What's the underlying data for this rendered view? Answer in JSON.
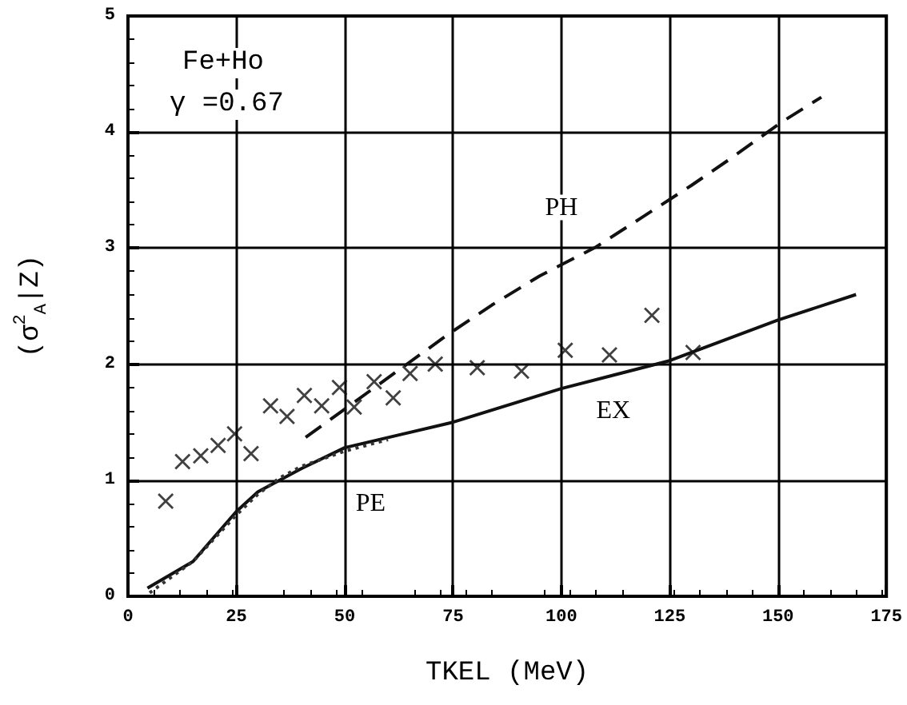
{
  "chart_data": {
    "type": "scatter",
    "xlabel": "TKEL (MeV)",
    "ylabel": "(σ$^{2}$$_{A}$|Z)",
    "xlim": [
      0,
      175
    ],
    "xticks": [
      0,
      25,
      50,
      75,
      100,
      125,
      150,
      175
    ],
    "ylim": [
      0,
      5
    ],
    "yticks": [
      0,
      1,
      2,
      3,
      4,
      5
    ],
    "grid": true,
    "series": [
      {
        "marker": "cross",
        "color": "#111111",
        "x": [
          8.7,
          12.6,
          16.8,
          20.8,
          24.6,
          28.4,
          32.9,
          36.7,
          40.7,
          44.7,
          48.8,
          52.2,
          56.8,
          61.2,
          65.1,
          70.9,
          80.6,
          90.8,
          100.9,
          111.1,
          120.9,
          130.4
        ],
        "values": [
          0.82,
          1.16,
          1.21,
          1.3,
          1.4,
          1.23,
          1.64,
          1.55,
          1.73,
          1.64,
          1.8,
          1.63,
          1.85,
          1.71,
          1.92,
          2.0,
          1.97,
          1.94,
          2.12,
          2.08,
          2.42,
          2.1
        ]
      },
      {
        "type": "line",
        "marker": "none",
        "color": "#111111",
        "line_style": "solid",
        "x": [
          4.5,
          15,
          25,
          30,
          35,
          40,
          50,
          75,
          100,
          125,
          150,
          168
        ],
        "values": [
          0.07,
          0.3,
          0.73,
          0.9,
          1.0,
          1.1,
          1.28,
          1.5,
          1.79,
          2.03,
          2.38,
          2.6
        ]
      },
      {
        "type": "line",
        "marker": "none",
        "color": "#333333",
        "line_style": "dotted",
        "x": [
          5,
          15,
          25,
          30,
          35,
          40,
          50,
          60
        ],
        "values": [
          0.03,
          0.3,
          0.7,
          0.88,
          1.02,
          1.12,
          1.25,
          1.35
        ]
      },
      {
        "type": "line",
        "marker": "none",
        "color": "#111111",
        "line_style": "dashed",
        "x": [
          41,
          74,
          84,
          95,
          108,
          118,
          130,
          139,
          151,
          160
        ],
        "values": [
          1.37,
          2.26,
          2.51,
          2.76,
          3.01,
          3.25,
          3.54,
          3.77,
          4.09,
          4.3
        ]
      }
    ],
    "annotations": [
      "Fe+Ho",
      "γ =0.67",
      {
        "text": "PH",
        "x": 100,
        "y": 3.35
      },
      {
        "text": "EX",
        "x": 112,
        "y": 1.6
      },
      {
        "text": "PE",
        "x": 56,
        "y": 0.8
      }
    ]
  }
}
